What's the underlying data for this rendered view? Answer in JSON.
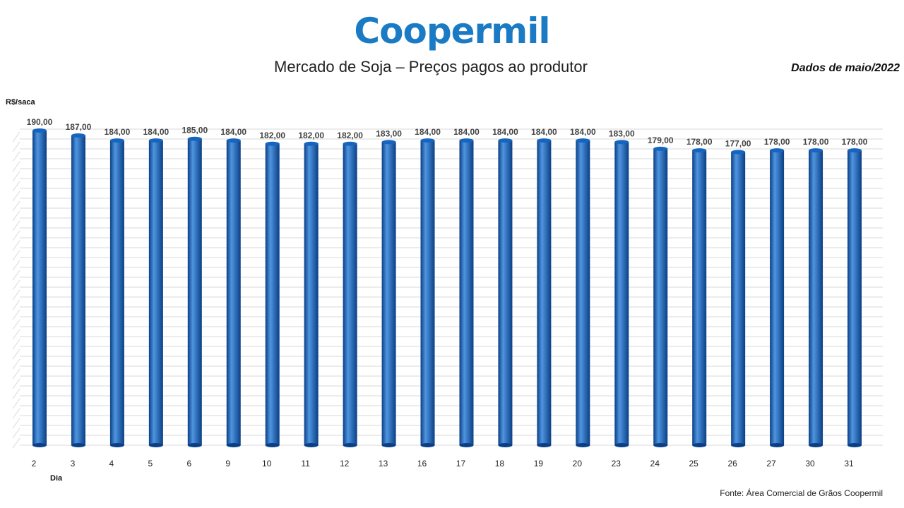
{
  "header": {
    "logo_text": "Coopermil",
    "title": "Mercado de Soja – Preços pagos ao produtor",
    "period": "Dados de maio/2022"
  },
  "footer": {
    "source": "Fonte: Área Comercial de Grãos Coopermil"
  },
  "colors": {
    "brand": "#1a7bc4",
    "bar": "#1565c0",
    "bar_light": "#4f95e0",
    "bar_dark": "#0a3f86",
    "grid": "#d9d9d9"
  },
  "chart_data": {
    "type": "bar",
    "title": "Mercado de Soja – Preços pagos ao produtor",
    "xlabel": "Dia",
    "ylabel": "R$/saca",
    "categories": [
      "2",
      "3",
      "4",
      "5",
      "6",
      "9",
      "10",
      "11",
      "12",
      "13",
      "16",
      "17",
      "18",
      "19",
      "20",
      "23",
      "24",
      "25",
      "26",
      "27",
      "30",
      "31"
    ],
    "values": [
      190,
      187,
      184,
      184,
      185,
      184,
      182,
      182,
      182,
      183,
      184,
      184,
      184,
      184,
      184,
      183,
      179,
      178,
      177,
      178,
      178,
      178
    ],
    "data_labels": [
      "190,00",
      "187,00",
      "184,00",
      "184,00",
      "185,00",
      "184,00",
      "182,00",
      "182,00",
      "182,00",
      "183,00",
      "184,00",
      "184,00",
      "184,00",
      "184,00",
      "184,00",
      "183,00",
      "179,00",
      "178,00",
      "177,00",
      "178,00",
      "178,00",
      "178,00"
    ],
    "ylim": [
      0,
      190
    ],
    "grid": true,
    "legend": "none"
  }
}
